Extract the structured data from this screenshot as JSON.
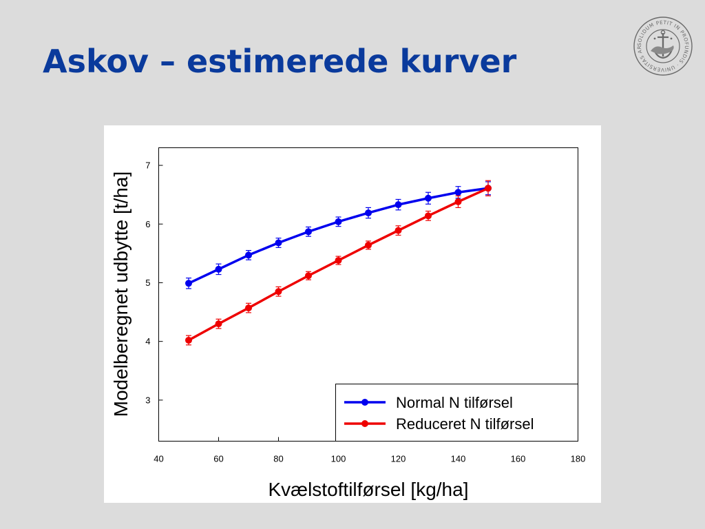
{
  "slide": {
    "title": "Askov – estimerede kurver"
  },
  "logo": {
    "icon": "university-seal-icon",
    "text": "SOLIDUM PETIT IN PROFUNDIS · UNIVERSITAS ARHUSIENSIS"
  },
  "colors": {
    "title": "#0a3a9c",
    "background": "#dcdcdc",
    "normal_series": "#0000ee",
    "reduced_series": "#ee0000"
  },
  "chart_data": {
    "type": "line",
    "xlabel": "Kvælstoftilførsel [kg/ha]",
    "ylabel": "Modelberegnet udbytte [t/ha]",
    "xlim": [
      40,
      180
    ],
    "ylim": [
      2.3,
      7.3
    ],
    "xticks": [
      40,
      60,
      80,
      100,
      120,
      140,
      160,
      180
    ],
    "yticks": [
      3,
      4,
      5,
      6,
      7
    ],
    "grid": false,
    "legend_position": "bottom-right",
    "error_bars": true,
    "series": [
      {
        "name": "Normal N tilførsel",
        "color": "#0000ee",
        "x": [
          50,
          60,
          70,
          80,
          90,
          100,
          110,
          120,
          130,
          140,
          150
        ],
        "y": [
          4.99,
          5.23,
          5.47,
          5.68,
          5.87,
          6.04,
          6.19,
          6.33,
          6.44,
          6.54,
          6.61
        ],
        "err": [
          0.09,
          0.09,
          0.08,
          0.08,
          0.08,
          0.08,
          0.09,
          0.09,
          0.1,
          0.1,
          0.11
        ]
      },
      {
        "name": "Reduceret N tilførsel",
        "color": "#ee0000",
        "x": [
          50,
          60,
          70,
          80,
          90,
          100,
          110,
          120,
          130,
          140,
          150
        ],
        "y": [
          4.02,
          4.3,
          4.57,
          4.85,
          5.12,
          5.38,
          5.64,
          5.89,
          6.14,
          6.38,
          6.61
        ],
        "err": [
          0.08,
          0.08,
          0.08,
          0.08,
          0.07,
          0.07,
          0.07,
          0.08,
          0.08,
          0.1,
          0.13
        ]
      }
    ]
  }
}
